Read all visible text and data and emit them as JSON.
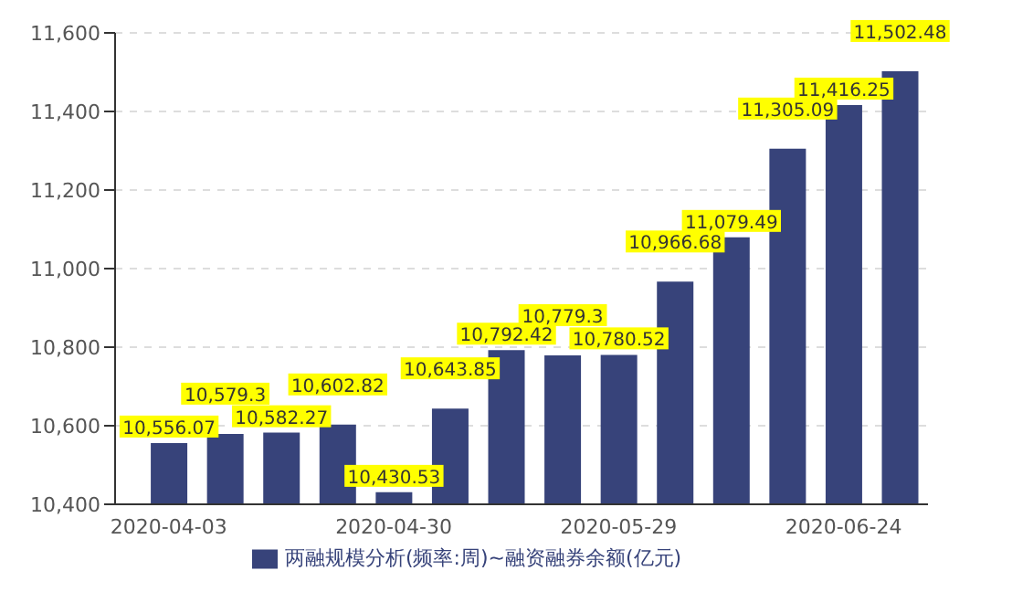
{
  "chart_data": {
    "type": "bar",
    "categories": [
      "2020-04-03",
      null,
      null,
      null,
      "2020-04-30",
      null,
      null,
      null,
      "2020-05-29",
      null,
      null,
      null,
      "2020-06-24",
      null
    ],
    "series": [
      {
        "name": "两融规模分析(频率:周)~融资融券余额(亿元)",
        "color": "#37437a",
        "values": [
          10556.07,
          10579.3,
          10582.27,
          10602.82,
          10430.53,
          10643.85,
          10792.42,
          10779.3,
          10780.52,
          10966.68,
          11079.49,
          11305.09,
          11416.25,
          11502.48
        ],
        "value_labels": [
          "10,556.07",
          "10,579.3",
          "10,582.27",
          "10,602.82",
          "10,430.53",
          "10,643.85",
          "10,792.42",
          "10,779.3",
          "10,780.52",
          "10,966.68",
          "11,079.49",
          "11,305.09",
          "11,416.25",
          "11,502.48"
        ]
      }
    ],
    "ylim": [
      10400,
      11600
    ],
    "yticks": [
      {
        "value": 10400,
        "label": "10,400"
      },
      {
        "value": 10600,
        "label": "10,600"
      },
      {
        "value": 10800,
        "label": "10,800"
      },
      {
        "value": 11000,
        "label": "11,000"
      },
      {
        "value": 11200,
        "label": "11,200"
      },
      {
        "value": 11400,
        "label": "11,400"
      },
      {
        "value": 11600,
        "label": "11,600"
      }
    ],
    "grid": "y",
    "legend": "bottom"
  }
}
